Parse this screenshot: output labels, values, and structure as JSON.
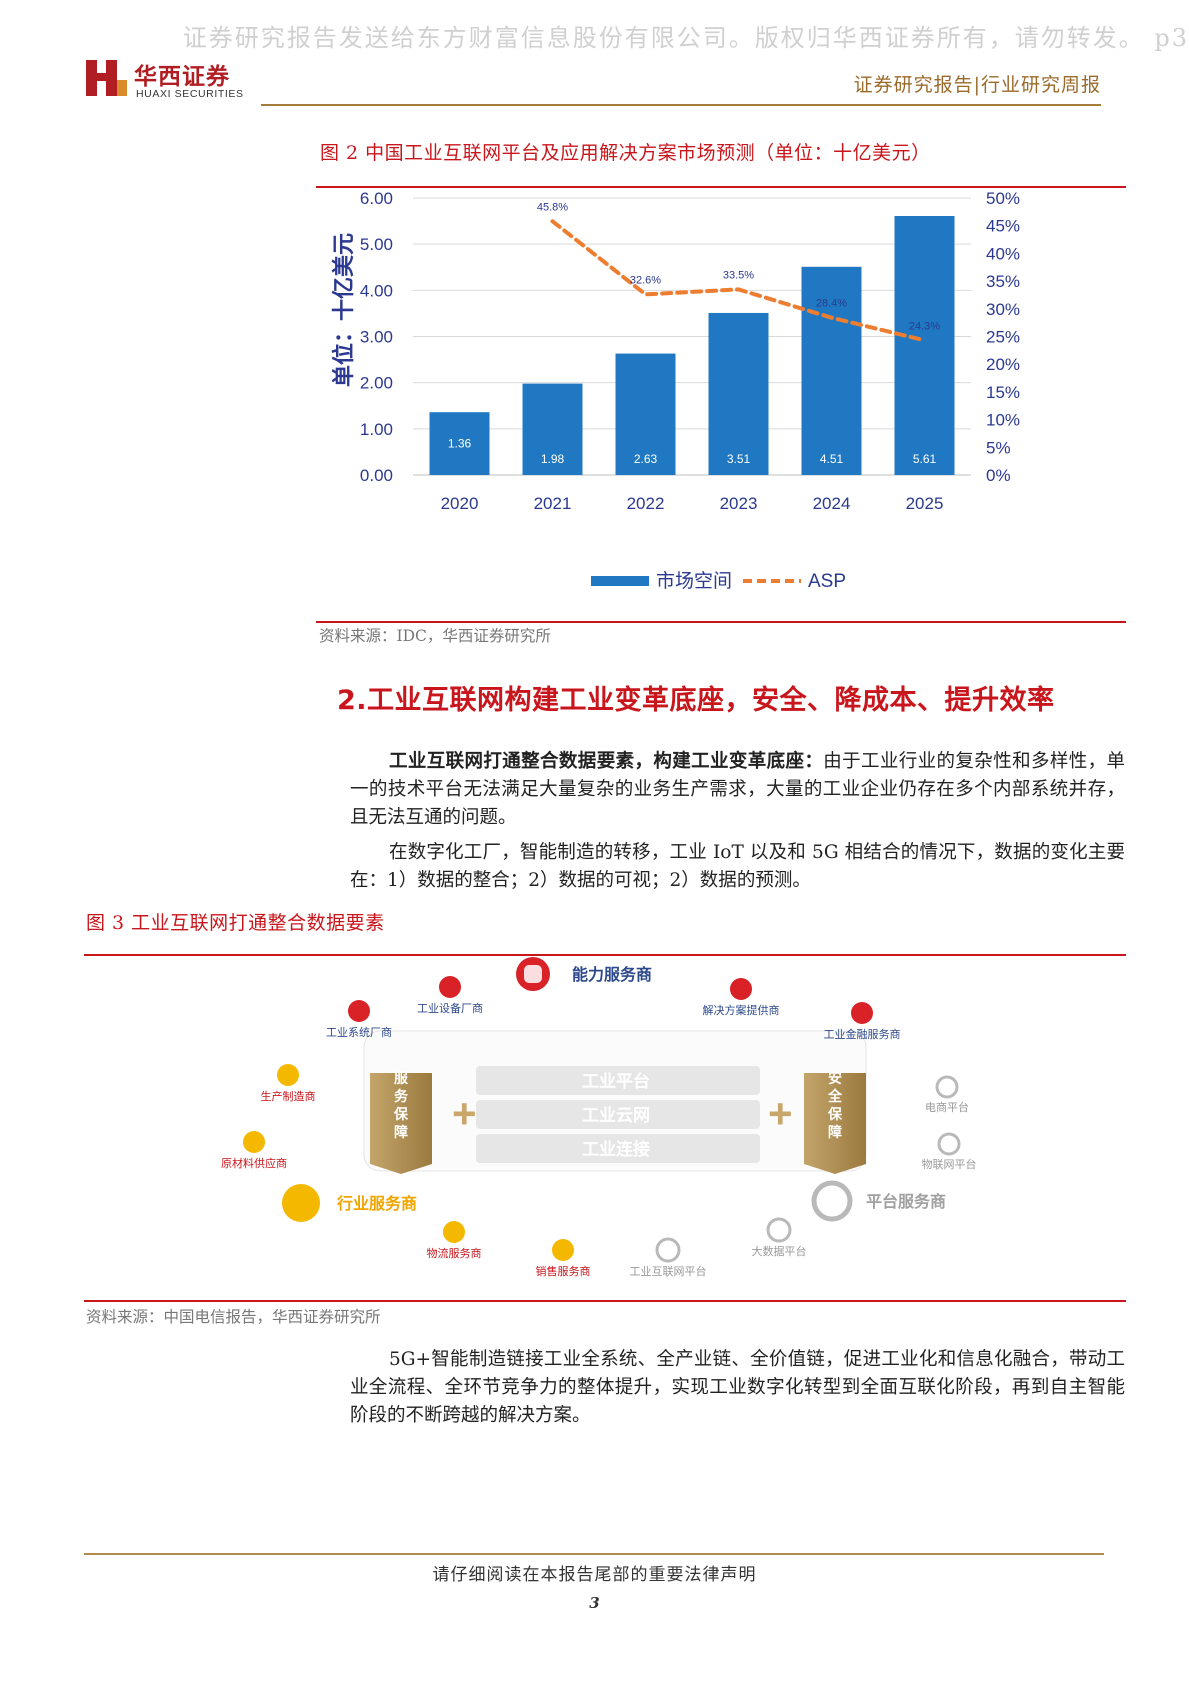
{
  "watermark": "证券研究报告发送给东方财富信息股份有限公司。版权归华西证券所有，请勿转发。 p3",
  "header": {
    "logo_cn": "华西证券",
    "logo_en": "HUAXI SECURITIES",
    "report_type": "证券研究报告|行业研究周报"
  },
  "figure2": {
    "title": "图 2 中国工业互联网平台及应用解决方案市场预测（单位：十亿美元）",
    "source": "资料来源：IDC，华西证券研究所"
  },
  "chart_data": {
    "type": "bar",
    "categories": [
      "2020",
      "2021",
      "2022",
      "2023",
      "2024",
      "2025"
    ],
    "series": [
      {
        "name": "市场空间",
        "type": "bar",
        "axis": "left",
        "values": [
          1.36,
          1.98,
          2.63,
          3.51,
          4.51,
          5.61
        ],
        "color": "#1f78c1"
      },
      {
        "name": "ASP",
        "type": "line",
        "axis": "right",
        "style": "dashed",
        "values": [
          null,
          45.8,
          32.6,
          33.5,
          28.4,
          24.3
        ],
        "color": "#ed7d31"
      }
    ],
    "ylabel": "单位：十亿美元",
    "ylim": [
      0,
      6
    ],
    "y_ticks": [
      "0.00",
      "1.00",
      "2.00",
      "3.00",
      "4.00",
      "5.00",
      "6.00"
    ],
    "y2lim": [
      0,
      50
    ],
    "y2_ticks": [
      "0%",
      "5%",
      "10%",
      "15%",
      "20%",
      "25%",
      "30%",
      "35%",
      "40%",
      "45%",
      "50%"
    ],
    "bar_labels": [
      "1.36",
      "1.98",
      "2.63",
      "3.51",
      "4.51",
      "5.61"
    ],
    "line_labels": [
      "",
      "45.8%",
      "32.6%",
      "33.5%",
      "28.4%",
      "24.3%"
    ],
    "legend_position": "bottom",
    "grid": true,
    "colors": {
      "bar": "#1f78c1",
      "line": "#ed7d31",
      "axis_text": "#2b3990"
    }
  },
  "section": {
    "title": "2.工业互联网构建工业变革底座，安全、降成本、提升效率"
  },
  "para1": {
    "bold": "工业互联网打通整合数据要素，构建工业变革底座：",
    "text": "由于工业行业的复杂性和多样性，单一的技术平台无法满足大量复杂的业务生产需求，大量的工业企业仍存在多个内部系统并存，且无法互通的问题。"
  },
  "para2": {
    "text": "在数字化工厂，智能制造的转移，工业 IoT 以及和 5G 相结合的情况下，数据的变化主要在：1）数据的整合；2）数据的可视；2）数据的预测。"
  },
  "figure3": {
    "title": "图 3 工业互联网打通整合数据要素",
    "source": "资料来源：中国电信报告，华西证券研究所",
    "diagram": {
      "capability_provider": "能力服务商",
      "equipment_vendor": "工业设备厂商",
      "system_vendor": "工业系统厂商",
      "solution_provider": "解决方案提供商",
      "finance_provider": "工业金融服务商",
      "manufacturer": "生产制造商",
      "raw_material": "原材料供应商",
      "industry_provider": "行业服务商",
      "logistics": "物流服务商",
      "sales": "销售服务商",
      "iiot_platform": "工业互联网平台",
      "bigdata_platform": "大数据平台",
      "platform_provider": "平台服务商",
      "ecommerce": "电商平台",
      "iot_platform": "物联网平台",
      "service_guarantee": "服务保障",
      "security_guarantee": "安全保障",
      "layer1": "工业平台",
      "layer2": "工业云网",
      "layer3": "工业连接",
      "plus": "+"
    }
  },
  "para3": {
    "text": "5G+智能制造链接工业全系统、全产业链、全价值链，促进工业化和信息化融合，带动工业全流程、全环节竞争力的整体提升，实现工业数字化转型到全面互联化阶段，再到自主智能阶段的不断跨越的解决方案。"
  },
  "footer": {
    "disclaimer": "请仔细阅读在本报告尾部的重要法律声明",
    "page": "3"
  }
}
